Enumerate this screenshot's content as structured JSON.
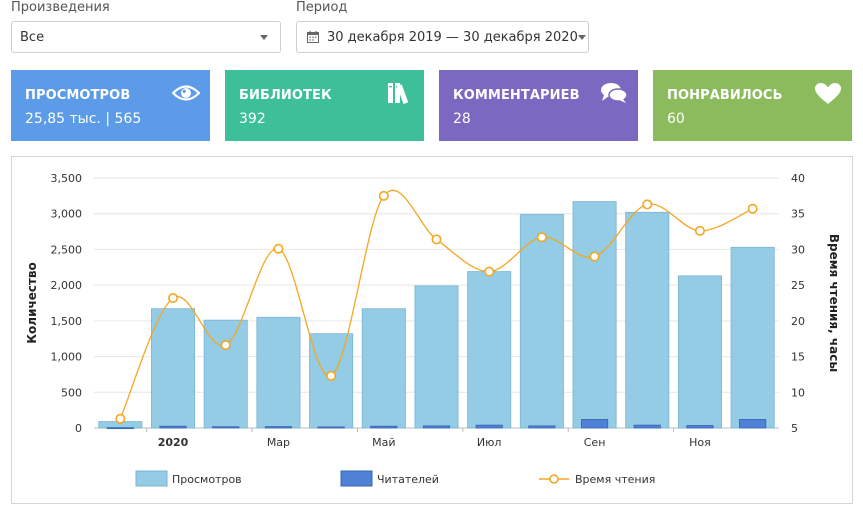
{
  "filters": {
    "works_label": "Произведения",
    "works_value": "Все",
    "period_label": "Период",
    "period_value": "30 декабря 2019 — 30 декабря 2020"
  },
  "cards": [
    {
      "title": "ПРОСМОТРОВ",
      "value": "25,85 тыс. | 565",
      "color": "#5b9be7",
      "icon": "eye-icon"
    },
    {
      "title": "БИБЛИОТЕК",
      "value": "392",
      "color": "#3dbf9a",
      "icon": "books-icon"
    },
    {
      "title": "КОММЕНТАРИЕВ",
      "value": "28",
      "color": "#7b68c0",
      "icon": "comments-icon"
    },
    {
      "title": "ПОНРАВИЛОСЬ",
      "value": "60",
      "color": "#8bbb5c",
      "icon": "heart-icon"
    }
  ],
  "chart_data": {
    "type": "bar",
    "categories": [
      "2019-12",
      "2020-01",
      "2020-02",
      "2020-03",
      "2020-04",
      "2020-05",
      "2020-06",
      "2020-07",
      "2020-08",
      "2020-09",
      "2020-10",
      "2020-11",
      "2020-12"
    ],
    "x_tick_labels": [
      {
        "index": 1,
        "label": "2020",
        "bold": true
      },
      {
        "index": 3,
        "label": "Мар",
        "bold": false
      },
      {
        "index": 5,
        "label": "Май",
        "bold": false
      },
      {
        "index": 7,
        "label": "Июл",
        "bold": false
      },
      {
        "index": 9,
        "label": "Сен",
        "bold": false
      },
      {
        "index": 11,
        "label": "Ноя",
        "bold": false
      }
    ],
    "series": [
      {
        "name": "Просмотров",
        "kind": "bar",
        "axis": "left",
        "color": "#94cbe5",
        "values": [
          90,
          1670,
          1510,
          1550,
          1320,
          1670,
          1990,
          2190,
          2990,
          3170,
          3020,
          2130,
          2530
        ]
      },
      {
        "name": "Читателей",
        "kind": "bar",
        "axis": "left",
        "color": "#4f82d6",
        "values": [
          5,
          25,
          18,
          20,
          15,
          25,
          30,
          40,
          30,
          120,
          40,
          35,
          120
        ]
      },
      {
        "name": "Время чтения",
        "kind": "line",
        "axis": "right",
        "color": "#f3a722",
        "values": [
          6.3,
          23.2,
          16.6,
          30.1,
          12.3,
          37.5,
          31.4,
          26.9,
          31.7,
          29.0,
          36.3,
          32.6,
          35.7
        ]
      }
    ],
    "ylabel": "Количество",
    "y2label": "Время чтения, часы",
    "ylim": [
      0,
      3500
    ],
    "yticks": [
      "0",
      "500",
      "1,000",
      "1,500",
      "2,000",
      "2,500",
      "3,000",
      "3,500"
    ],
    "y2lim": [
      5,
      40
    ],
    "y2ticks": [
      "5",
      "10",
      "15",
      "20",
      "25",
      "30",
      "35",
      "40"
    ],
    "grid": true,
    "legend_position": "bottom"
  }
}
